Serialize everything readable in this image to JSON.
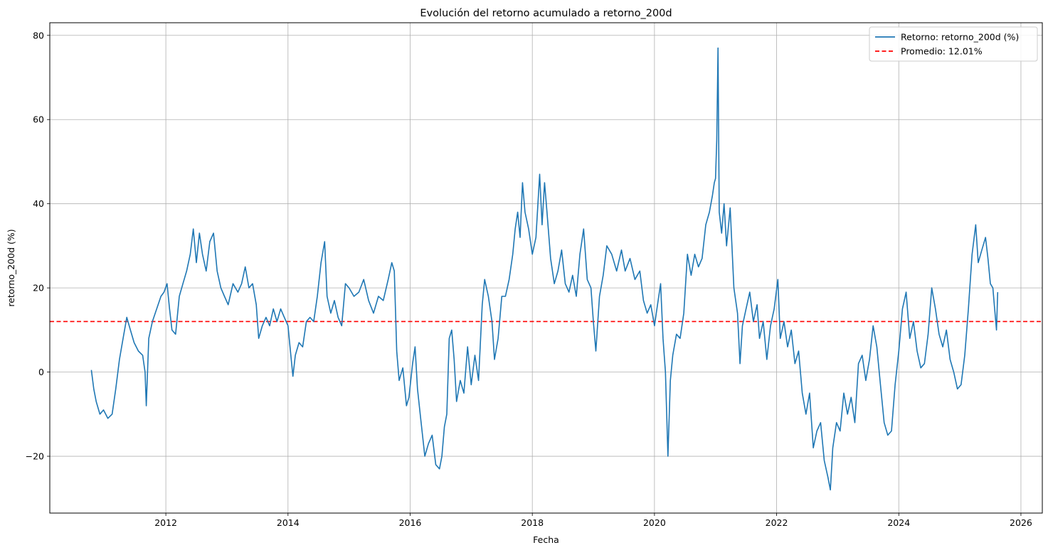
{
  "chart_data": {
    "type": "line",
    "title": "Evolución del retorno acumulado a retorno_200d",
    "xlabel": "Fecha",
    "ylabel": "retorno_200d (%)",
    "xlim": [
      2010.1,
      2026.35
    ],
    "ylim": [
      -33.5,
      83
    ],
    "x_ticks": [
      2012,
      2014,
      2016,
      2018,
      2020,
      2022,
      2024,
      2026
    ],
    "y_ticks": [
      -20,
      0,
      20,
      40,
      60,
      80
    ],
    "grid": true,
    "legend_position": "top-right",
    "series": [
      {
        "name": "Retorno: retorno_200d (%)",
        "color": "#1f77b4",
        "style": "solid",
        "points": [
          [
            2010.78,
            0.5
          ],
          [
            2010.82,
            -4
          ],
          [
            2010.86,
            -7
          ],
          [
            2010.92,
            -10
          ],
          [
            2010.98,
            -9
          ],
          [
            2011.05,
            -11
          ],
          [
            2011.12,
            -10
          ],
          [
            2011.18,
            -4
          ],
          [
            2011.24,
            3
          ],
          [
            2011.3,
            8
          ],
          [
            2011.36,
            13
          ],
          [
            2011.42,
            10
          ],
          [
            2011.48,
            7
          ],
          [
            2011.55,
            5
          ],
          [
            2011.62,
            4
          ],
          [
            2011.66,
            0
          ],
          [
            2011.68,
            -8
          ],
          [
            2011.72,
            8
          ],
          [
            2011.78,
            12
          ],
          [
            2011.85,
            15
          ],
          [
            2011.92,
            18
          ],
          [
            2011.97,
            19
          ],
          [
            2012.02,
            21
          ],
          [
            2012.06,
            15
          ],
          [
            2012.1,
            10
          ],
          [
            2012.16,
            9
          ],
          [
            2012.22,
            18
          ],
          [
            2012.28,
            21
          ],
          [
            2012.34,
            24
          ],
          [
            2012.4,
            28
          ],
          [
            2012.45,
            34
          ],
          [
            2012.5,
            26
          ],
          [
            2012.55,
            33
          ],
          [
            2012.6,
            28
          ],
          [
            2012.66,
            24
          ],
          [
            2012.72,
            31
          ],
          [
            2012.78,
            33
          ],
          [
            2012.84,
            24
          ],
          [
            2012.9,
            20
          ],
          [
            2012.96,
            18
          ],
          [
            2013.02,
            16
          ],
          [
            2013.1,
            21
          ],
          [
            2013.18,
            19
          ],
          [
            2013.24,
            21
          ],
          [
            2013.3,
            25
          ],
          [
            2013.36,
            20
          ],
          [
            2013.42,
            21
          ],
          [
            2013.48,
            16
          ],
          [
            2013.52,
            8
          ],
          [
            2013.58,
            11
          ],
          [
            2013.64,
            13
          ],
          [
            2013.7,
            11
          ],
          [
            2013.76,
            15
          ],
          [
            2013.82,
            12
          ],
          [
            2013.88,
            15
          ],
          [
            2013.94,
            13
          ],
          [
            2014.0,
            11
          ],
          [
            2014.04,
            5
          ],
          [
            2014.08,
            -1
          ],
          [
            2014.12,
            4
          ],
          [
            2014.18,
            7
          ],
          [
            2014.24,
            6
          ],
          [
            2014.3,
            12
          ],
          [
            2014.36,
            13
          ],
          [
            2014.42,
            12
          ],
          [
            2014.48,
            18
          ],
          [
            2014.54,
            26
          ],
          [
            2014.6,
            31
          ],
          [
            2014.64,
            18
          ],
          [
            2014.7,
            14
          ],
          [
            2014.76,
            17
          ],
          [
            2014.82,
            13
          ],
          [
            2014.88,
            11
          ],
          [
            2014.94,
            21
          ],
          [
            2015.0,
            20
          ],
          [
            2015.08,
            18
          ],
          [
            2015.16,
            19
          ],
          [
            2015.24,
            22
          ],
          [
            2015.32,
            17
          ],
          [
            2015.4,
            14
          ],
          [
            2015.48,
            18
          ],
          [
            2015.56,
            17
          ],
          [
            2015.64,
            22
          ],
          [
            2015.7,
            26
          ],
          [
            2015.74,
            24
          ],
          [
            2015.78,
            5
          ],
          [
            2015.82,
            -2
          ],
          [
            2015.88,
            1
          ],
          [
            2015.94,
            -8
          ],
          [
            2015.98,
            -6
          ],
          [
            2016.04,
            2
          ],
          [
            2016.08,
            6
          ],
          [
            2016.12,
            -4
          ],
          [
            2016.18,
            -12
          ],
          [
            2016.24,
            -20
          ],
          [
            2016.3,
            -17
          ],
          [
            2016.36,
            -15
          ],
          [
            2016.42,
            -22
          ],
          [
            2016.48,
            -23
          ],
          [
            2016.52,
            -20
          ],
          [
            2016.56,
            -13
          ],
          [
            2016.6,
            -10
          ],
          [
            2016.64,
            8
          ],
          [
            2016.68,
            10
          ],
          [
            2016.72,
            3
          ],
          [
            2016.76,
            -7
          ],
          [
            2016.82,
            -2
          ],
          [
            2016.88,
            -5
          ],
          [
            2016.94,
            6
          ],
          [
            2017.0,
            -3
          ],
          [
            2017.06,
            4
          ],
          [
            2017.12,
            -2
          ],
          [
            2017.18,
            16
          ],
          [
            2017.22,
            22
          ],
          [
            2017.28,
            18
          ],
          [
            2017.34,
            12
          ],
          [
            2017.38,
            3
          ],
          [
            2017.44,
            8
          ],
          [
            2017.5,
            18
          ],
          [
            2017.56,
            18
          ],
          [
            2017.62,
            22
          ],
          [
            2017.68,
            28
          ],
          [
            2017.72,
            34
          ],
          [
            2017.76,
            38
          ],
          [
            2017.8,
            32
          ],
          [
            2017.84,
            45
          ],
          [
            2017.88,
            38
          ],
          [
            2017.94,
            34
          ],
          [
            2018.0,
            28
          ],
          [
            2018.06,
            32
          ],
          [
            2018.12,
            47
          ],
          [
            2018.16,
            35
          ],
          [
            2018.2,
            45
          ],
          [
            2018.24,
            38
          ],
          [
            2018.3,
            27
          ],
          [
            2018.36,
            21
          ],
          [
            2018.42,
            24
          ],
          [
            2018.48,
            29
          ],
          [
            2018.54,
            21
          ],
          [
            2018.6,
            19
          ],
          [
            2018.66,
            23
          ],
          [
            2018.72,
            18
          ],
          [
            2018.78,
            28
          ],
          [
            2018.84,
            34
          ],
          [
            2018.9,
            22
          ],
          [
            2018.96,
            20
          ],
          [
            2019.0,
            12
          ],
          [
            2019.04,
            5
          ],
          [
            2019.1,
            18
          ],
          [
            2019.16,
            23
          ],
          [
            2019.22,
            30
          ],
          [
            2019.3,
            28
          ],
          [
            2019.38,
            24
          ],
          [
            2019.46,
            29
          ],
          [
            2019.52,
            24
          ],
          [
            2019.6,
            27
          ],
          [
            2019.68,
            22
          ],
          [
            2019.76,
            24
          ],
          [
            2019.82,
            17
          ],
          [
            2019.88,
            14
          ],
          [
            2019.94,
            16
          ],
          [
            2020.0,
            11
          ],
          [
            2020.04,
            15
          ],
          [
            2020.1,
            21
          ],
          [
            2020.14,
            8
          ],
          [
            2020.18,
            0
          ],
          [
            2020.22,
            -20
          ],
          [
            2020.26,
            -2
          ],
          [
            2020.3,
            4
          ],
          [
            2020.36,
            9
          ],
          [
            2020.42,
            8
          ],
          [
            2020.48,
            14
          ],
          [
            2020.54,
            28
          ],
          [
            2020.6,
            23
          ],
          [
            2020.66,
            28
          ],
          [
            2020.72,
            25
          ],
          [
            2020.78,
            27
          ],
          [
            2020.84,
            35
          ],
          [
            2020.9,
            38
          ],
          [
            2020.95,
            42
          ],
          [
            2020.98,
            45
          ],
          [
            2021.0,
            46
          ],
          [
            2021.02,
            55
          ],
          [
            2021.04,
            77
          ],
          [
            2021.06,
            38
          ],
          [
            2021.1,
            33
          ],
          [
            2021.14,
            40
          ],
          [
            2021.18,
            30
          ],
          [
            2021.24,
            39
          ],
          [
            2021.3,
            20
          ],
          [
            2021.36,
            14
          ],
          [
            2021.4,
            2
          ],
          [
            2021.44,
            11
          ],
          [
            2021.5,
            15
          ],
          [
            2021.56,
            19
          ],
          [
            2021.62,
            12
          ],
          [
            2021.68,
            16
          ],
          [
            2021.72,
            8
          ],
          [
            2021.78,
            12
          ],
          [
            2021.84,
            3
          ],
          [
            2021.9,
            11
          ],
          [
            2021.96,
            15
          ],
          [
            2022.02,
            22
          ],
          [
            2022.06,
            8
          ],
          [
            2022.12,
            12
          ],
          [
            2022.18,
            6
          ],
          [
            2022.24,
            10
          ],
          [
            2022.3,
            2
          ],
          [
            2022.36,
            5
          ],
          [
            2022.42,
            -5
          ],
          [
            2022.48,
            -10
          ],
          [
            2022.54,
            -5
          ],
          [
            2022.6,
            -18
          ],
          [
            2022.66,
            -14
          ],
          [
            2022.72,
            -12
          ],
          [
            2022.78,
            -21
          ],
          [
            2022.84,
            -25
          ],
          [
            2022.88,
            -28
          ],
          [
            2022.92,
            -18
          ],
          [
            2022.98,
            -12
          ],
          [
            2023.04,
            -14
          ],
          [
            2023.1,
            -5
          ],
          [
            2023.16,
            -10
          ],
          [
            2023.22,
            -6
          ],
          [
            2023.28,
            -12
          ],
          [
            2023.34,
            2
          ],
          [
            2023.4,
            4
          ],
          [
            2023.46,
            -2
          ],
          [
            2023.52,
            3
          ],
          [
            2023.58,
            11
          ],
          [
            2023.64,
            6
          ],
          [
            2023.7,
            -3
          ],
          [
            2023.76,
            -12
          ],
          [
            2023.82,
            -15
          ],
          [
            2023.88,
            -14
          ],
          [
            2023.94,
            -3
          ],
          [
            2024.0,
            5
          ],
          [
            2024.06,
            15
          ],
          [
            2024.12,
            19
          ],
          [
            2024.18,
            8
          ],
          [
            2024.24,
            12
          ],
          [
            2024.3,
            5
          ],
          [
            2024.36,
            1
          ],
          [
            2024.42,
            2
          ],
          [
            2024.48,
            9
          ],
          [
            2024.54,
            20
          ],
          [
            2024.6,
            15
          ],
          [
            2024.66,
            9
          ],
          [
            2024.72,
            6
          ],
          [
            2024.78,
            10
          ],
          [
            2024.84,
            3
          ],
          [
            2024.9,
            0
          ],
          [
            2024.96,
            -4
          ],
          [
            2025.02,
            -3
          ],
          [
            2025.08,
            4
          ],
          [
            2025.14,
            15
          ],
          [
            2025.2,
            28
          ],
          [
            2025.26,
            35
          ],
          [
            2025.3,
            26
          ],
          [
            2025.36,
            29
          ],
          [
            2025.42,
            32
          ],
          [
            2025.46,
            27
          ],
          [
            2025.5,
            21
          ],
          [
            2025.54,
            20
          ],
          [
            2025.57,
            15
          ],
          [
            2025.6,
            10
          ],
          [
            2025.62,
            19
          ]
        ]
      },
      {
        "name": "Promedio: 12.01%",
        "color": "#ff0000",
        "style": "dashed",
        "value": 12.01
      }
    ]
  }
}
